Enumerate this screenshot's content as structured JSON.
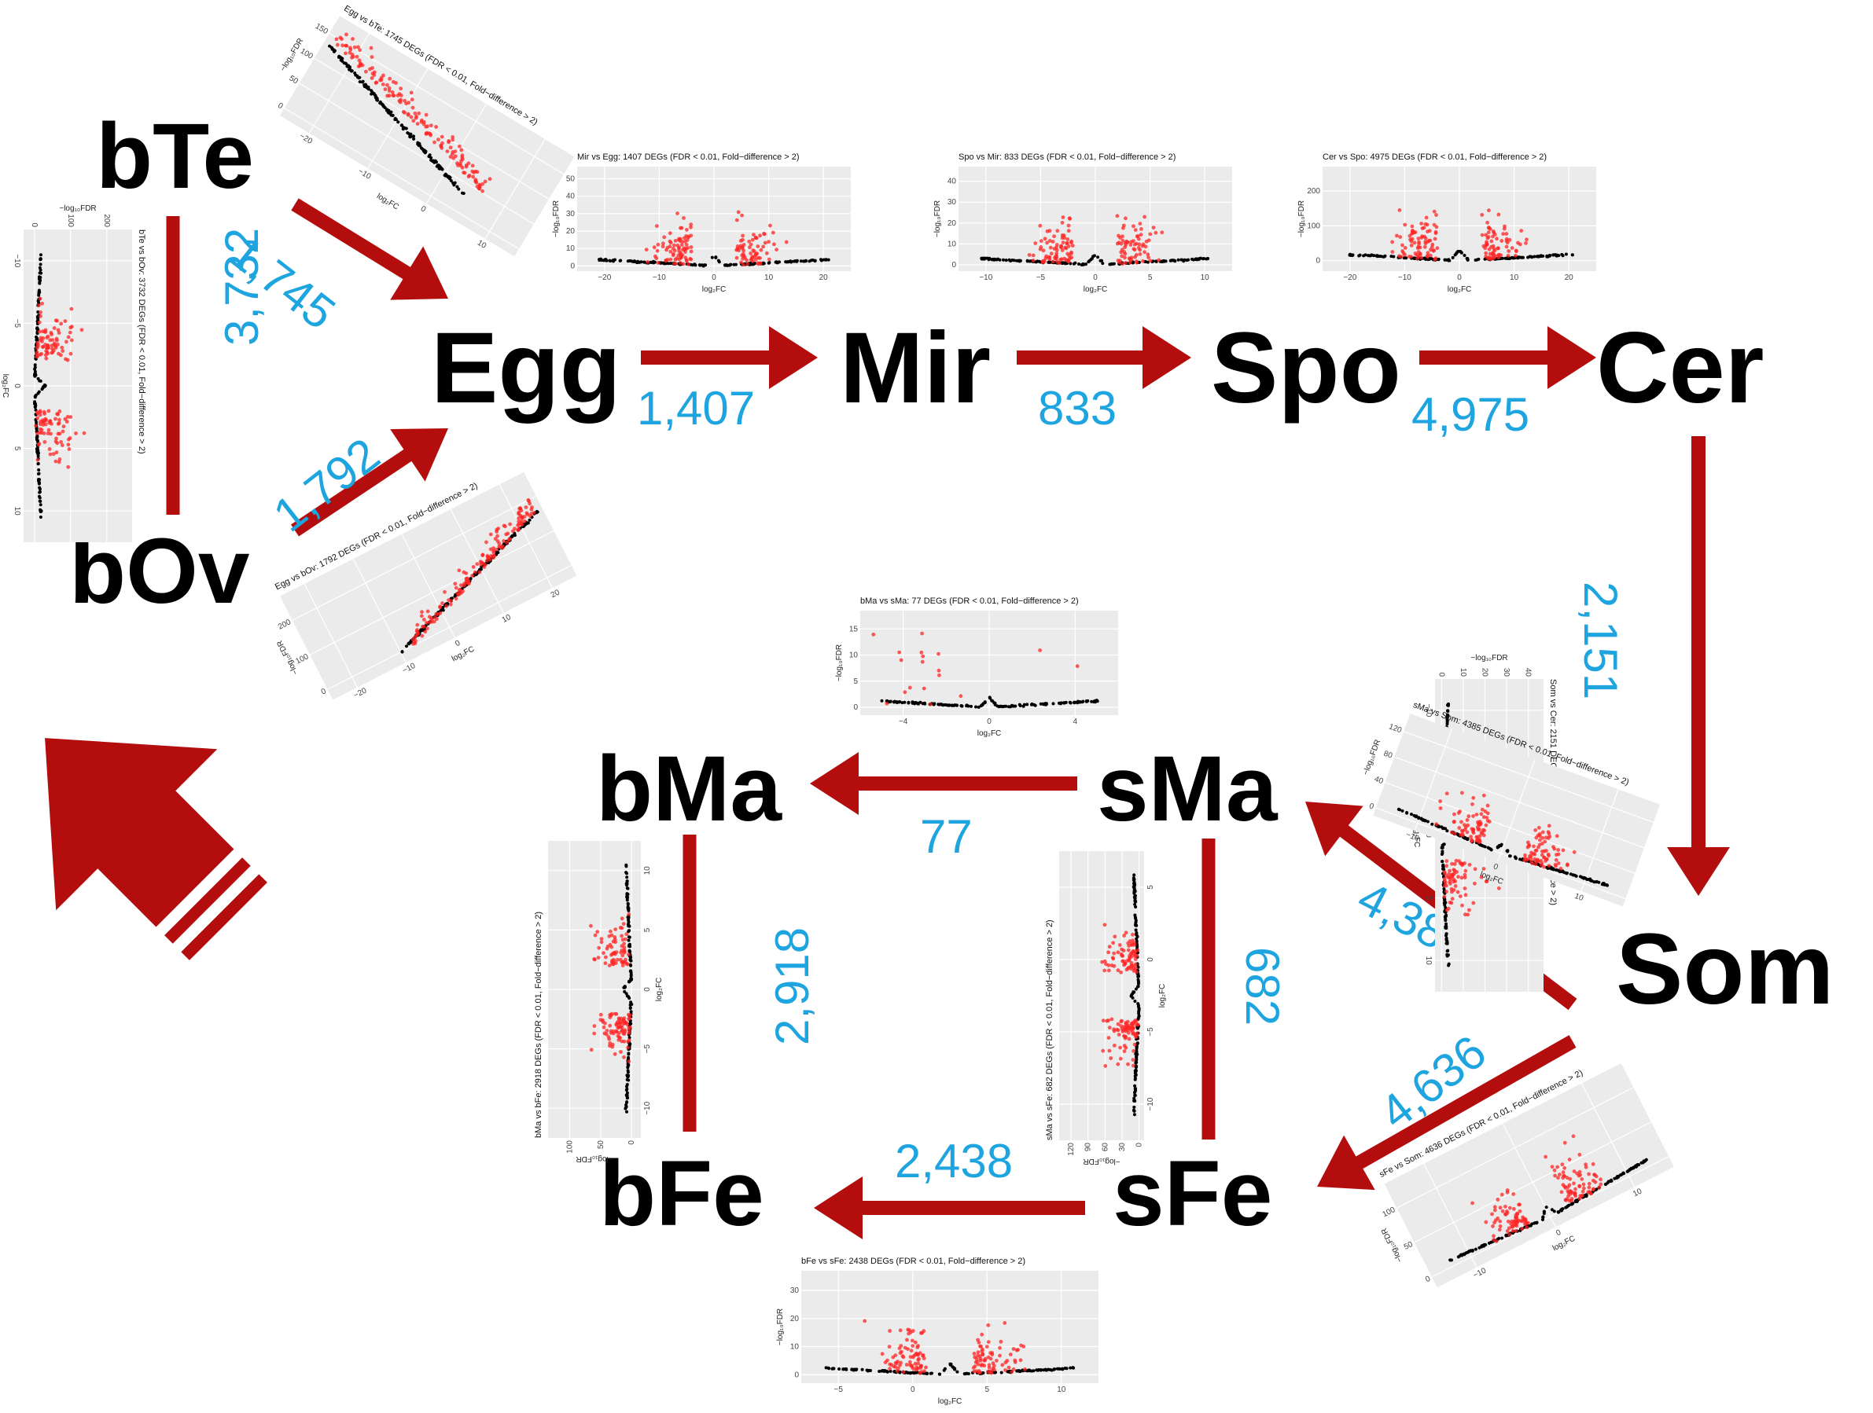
{
  "colors": {
    "arrow": "#b30d0d",
    "count": "#1ea5e0",
    "node": "#000000",
    "panel": "#ebebeb",
    "grid": "#ffffff",
    "sig": "#ff2424",
    "nonsig": "#000000"
  },
  "nodes": {
    "bTe": "bTe",
    "bOv": "bOv",
    "Egg": "Egg",
    "Mir": "Mir",
    "Spo": "Spo",
    "Cer": "Cer",
    "Som": "Som",
    "sMa": "sMa",
    "bMa": "bMa",
    "sFe": "sFe",
    "bFe": "bFe"
  },
  "counts": {
    "bTe_bOv": "3,732",
    "bTe_Egg": "1,745",
    "bOv_Egg": "1,792",
    "Egg_Mir": "1,407",
    "Mir_Spo": "833",
    "Spo_Cer": "4,975",
    "Cer_Som": "2,151",
    "Som_sMa": "4,385",
    "Som_sFe": "4,636",
    "sMa_bMa": "77",
    "sMa_sFe": "682",
    "bMa_bFe": "2,918",
    "sFe_bFe": "2,438"
  },
  "axis_labels": {
    "x": "log₂FC",
    "y": "−log₁₀FDR"
  },
  "plots": [
    {
      "id": "bte-bov",
      "title": "bTe vs bOv: 3732 DEGs (FDR < 0.01, Fold−difference > 2)",
      "xticks": [
        "−10",
        "−5",
        "0",
        "5",
        "10"
      ],
      "yticks": [
        "0",
        "100",
        "200"
      ]
    },
    {
      "id": "egg-bte",
      "title": "Egg vs bTe: 1745 DEGs (FDR < 0.01, Fold−difference > 2)",
      "xticks": [
        "−20",
        "−10",
        "0",
        "10"
      ],
      "yticks": [
        "0",
        "50",
        "100",
        "150"
      ]
    },
    {
      "id": "egg-bov",
      "title": "Egg vs bOv: 1792 DEGs (FDR < 0.01, Fold−difference > 2)",
      "xticks": [
        "−20",
        "−10",
        "0",
        "10",
        "20"
      ],
      "yticks": [
        "0",
        "100",
        "200"
      ]
    },
    {
      "id": "mir-egg",
      "title": "Mir vs Egg: 1407 DEGs (FDR < 0.01, Fold−difference > 2)",
      "xticks": [
        "−20",
        "−10",
        "0",
        "10",
        "20"
      ],
      "yticks": [
        "0",
        "10",
        "20",
        "30",
        "40",
        "50"
      ]
    },
    {
      "id": "spo-mir",
      "title": "Spo vs Mir: 833 DEGs (FDR < 0.01, Fold−difference > 2)",
      "xticks": [
        "−10",
        "−5",
        "0",
        "5",
        "10"
      ],
      "yticks": [
        "0",
        "10",
        "20",
        "30",
        "40"
      ]
    },
    {
      "id": "cer-spo",
      "title": "Cer vs Spo: 4975 DEGs (FDR < 0.01, Fold−difference > 2)",
      "xticks": [
        "−20",
        "−10",
        "0",
        "10",
        "20"
      ],
      "yticks": [
        "0",
        "100",
        "200"
      ]
    },
    {
      "id": "som-cer",
      "title": "Som vs Cer: 2151 DEGs (FDR < 0.01, Fold−difference > 2)",
      "xticks": [
        "−10",
        "−5",
        "0",
        "5",
        "10"
      ],
      "yticks": [
        "0",
        "10",
        "20",
        "30",
        "40"
      ]
    },
    {
      "id": "sma-som",
      "title": "sMa vs Som: 4385 DEGs (FDR < 0.01, Fold−difference > 2)",
      "xticks": [
        "−10",
        "0",
        "10"
      ],
      "yticks": [
        "0",
        "40",
        "80",
        "120"
      ]
    },
    {
      "id": "bma-sma",
      "title": "bMa vs sMa: 77 DEGs (FDR < 0.01, Fold−difference > 2)",
      "xticks": [
        "−4",
        "0",
        "4"
      ],
      "yticks": [
        "0",
        "5",
        "10",
        "15"
      ]
    },
    {
      "id": "bma-bfe",
      "title": "bMa vs bFe: 2918 DEGs (FDR < 0.01, Fold−difference > 2)",
      "xticks": [
        "−10",
        "−5",
        "0",
        "5",
        "10"
      ],
      "yticks": [
        "0",
        "50",
        "100"
      ]
    },
    {
      "id": "sma-sfe",
      "title": "sMa vs sFe: 682 DEGs (FDR < 0.01, Fold−difference > 2)",
      "xticks": [
        "−10",
        "−5",
        "0",
        "5"
      ],
      "yticks": [
        "0",
        "30",
        "60",
        "90",
        "120"
      ]
    },
    {
      "id": "sfe-som",
      "title": "sFe vs Som: 4636 DEGs (FDR < 0.01, Fold−difference > 2)",
      "xticks": [
        "−10",
        "0",
        "10"
      ],
      "yticks": [
        "0",
        "50",
        "100"
      ]
    },
    {
      "id": "bfe-sfe",
      "title": "bFe vs sFe: 2438 DEGs (FDR < 0.01, Fold−difference > 2)",
      "xticks": [
        "−5",
        "0",
        "5",
        "10"
      ],
      "yticks": [
        "0",
        "10",
        "20",
        "30"
      ]
    }
  ]
}
